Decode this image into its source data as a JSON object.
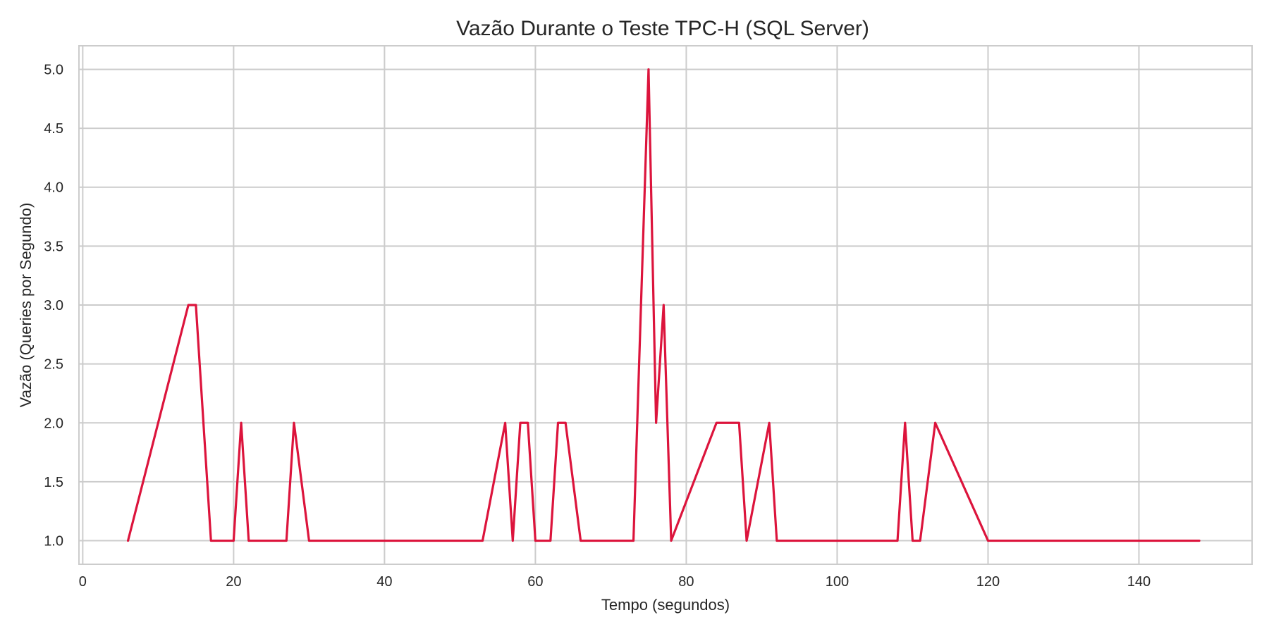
{
  "chart_data": {
    "type": "line",
    "title": "Vazão Durante o Teste TPC-H (SQL Server)",
    "xlabel": "Tempo (segundos)",
    "ylabel": "Vazão (Queries por Segundo)",
    "xlim": [
      -0.5,
      155
    ],
    "ylim": [
      0.8,
      5.2
    ],
    "xticks": [
      0,
      20,
      40,
      60,
      80,
      100,
      120,
      140
    ],
    "xtick_labels": [
      "0",
      "20",
      "40",
      "60",
      "80",
      "100",
      "120",
      "140"
    ],
    "yticks": [
      1.0,
      1.5,
      2.0,
      2.5,
      3.0,
      3.5,
      4.0,
      4.5,
      5.0
    ],
    "ytick_labels": [
      "1.0",
      "1.5",
      "2.0",
      "2.5",
      "3.0",
      "3.5",
      "4.0",
      "4.5",
      "5.0"
    ],
    "grid": true,
    "line_color": "#dc143c",
    "grid_color": "#cccccc",
    "series": [
      {
        "x": [
          6,
          14,
          15,
          17,
          20,
          21,
          22,
          27,
          28,
          30,
          53,
          56,
          57,
          58,
          59,
          60,
          62,
          63,
          64,
          66,
          73,
          75,
          76,
          77,
          78,
          84,
          87,
          88,
          91,
          92,
          108,
          109,
          110,
          111,
          113,
          120,
          148
        ],
        "values": [
          1,
          3,
          3,
          1,
          1,
          2,
          1,
          1,
          2,
          1,
          1,
          2,
          1,
          2,
          2,
          1,
          1,
          2,
          2,
          1,
          1,
          5,
          2,
          3,
          1,
          2,
          2,
          1,
          2,
          1,
          1,
          2,
          1,
          1,
          2,
          1,
          1
        ]
      }
    ]
  }
}
